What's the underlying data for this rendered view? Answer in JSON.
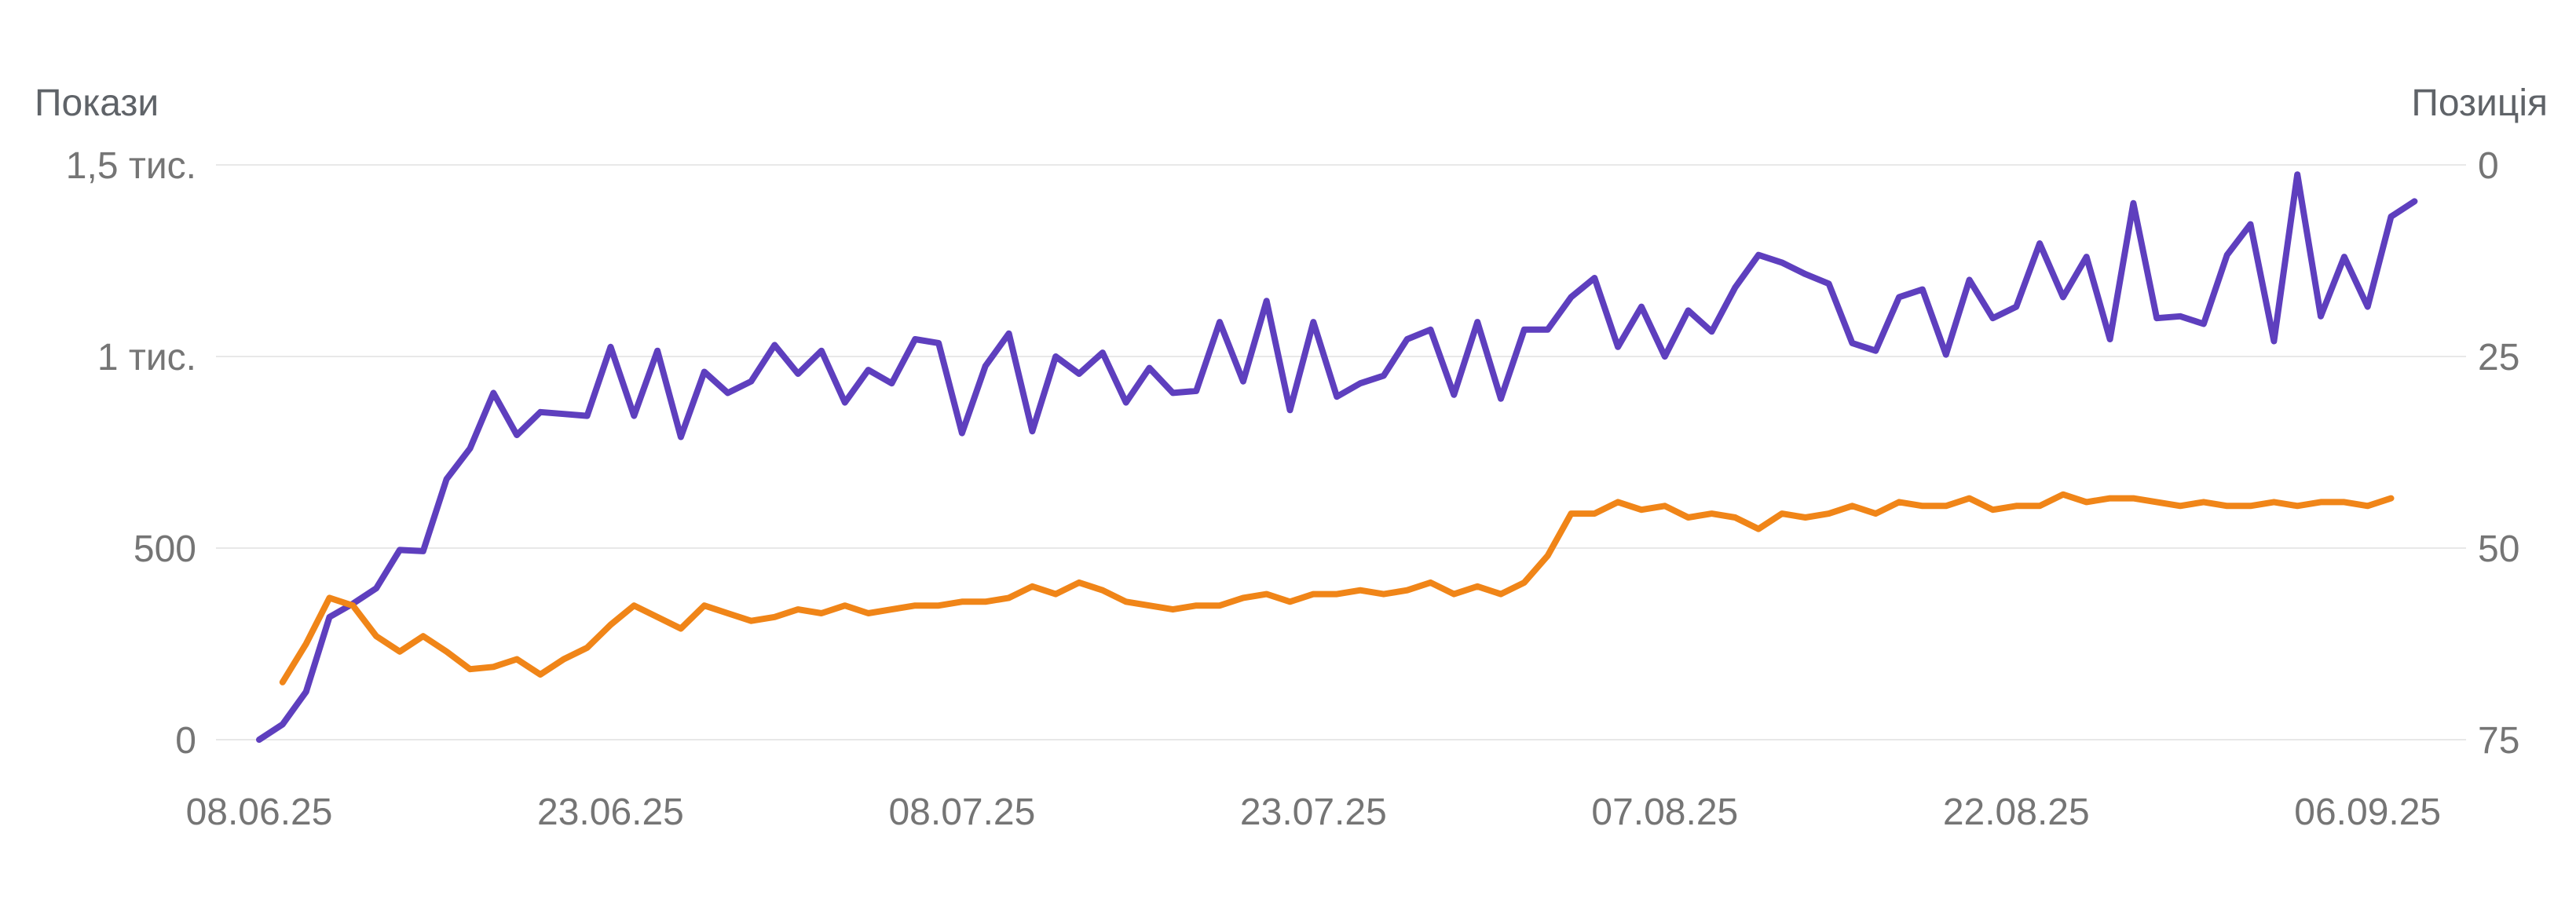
{
  "chart_data": {
    "type": "line",
    "y_axis_left": {
      "label": "Покази",
      "ylim": [
        0,
        1500
      ],
      "ticks": [
        0,
        500,
        1000,
        1500
      ],
      "tick_labels": [
        "0",
        "500",
        "1 тис.",
        "1,5 тис."
      ]
    },
    "y_axis_right": {
      "label": "Позиція",
      "reversed": true,
      "ylim": [
        0,
        75
      ],
      "ticks": [
        0,
        25,
        50,
        75
      ],
      "tick_labels": [
        "0",
        "25",
        "50",
        "75"
      ]
    },
    "x_tick_labels": [
      "08.06.25",
      "23.06.25",
      "08.07.25",
      "23.07.25",
      "07.08.25",
      "22.08.25",
      "06.09.25"
    ],
    "grid": true,
    "legend": "none",
    "series": [
      {
        "axis": "left",
        "color": "#5e3fbe",
        "start_date": "08.06.25",
        "values": [
          0,
          40,
          125,
          320,
          355,
          395,
          495,
          492,
          680,
          760,
          905,
          795,
          855,
          850,
          845,
          1025,
          845,
          1015,
          790,
          960,
          905,
          935,
          1030,
          955,
          1015,
          880,
          965,
          930,
          1045,
          1035,
          800,
          975,
          1060,
          805,
          1000,
          955,
          1010,
          880,
          970,
          905,
          910,
          1090,
          935,
          1145,
          860,
          1090,
          895,
          930,
          950,
          1045,
          1070,
          900,
          1090,
          890,
          1070,
          1070,
          1155,
          1205,
          1025,
          1130,
          1000,
          1120,
          1065,
          1180,
          1265,
          1245,
          1215,
          1190,
          1035,
          1015,
          1155,
          1175,
          1005,
          1200,
          1100,
          1130,
          1295,
          1155,
          1260,
          1045,
          1400,
          1100,
          1105,
          1085,
          1265,
          1345,
          1040,
          1475,
          1105,
          1260,
          1130,
          1365,
          1405
        ]
      },
      {
        "axis": "right",
        "color": "#f08518",
        "start_date": "09.06.25",
        "values": [
          67.5,
          62.5,
          56.5,
          57.5,
          61.5,
          63.5,
          61.5,
          63.5,
          65.8,
          65.5,
          64.5,
          66.5,
          64.5,
          63,
          60,
          57.5,
          59,
          60.5,
          57.5,
          58.5,
          59.5,
          59,
          58,
          58.5,
          57.5,
          58.5,
          58,
          57.5,
          57.5,
          57,
          57,
          56.5,
          55,
          56,
          54.5,
          55.5,
          57,
          57.5,
          58,
          57.5,
          57.5,
          56.5,
          56,
          57,
          56,
          56,
          55.5,
          56,
          55.5,
          54.5,
          56,
          55,
          56,
          54.5,
          51,
          45.5,
          45.5,
          44,
          45,
          44.5,
          46,
          45.5,
          46,
          47.5,
          45.5,
          46,
          45.5,
          44.5,
          45.5,
          44,
          44.5,
          44.5,
          43.5,
          45,
          44.5,
          44.5,
          43,
          44,
          43.5,
          43.5,
          44,
          44.5,
          44,
          44.5,
          44.5,
          44,
          44.5,
          44,
          44,
          44.5,
          43.5
        ]
      }
    ]
  }
}
